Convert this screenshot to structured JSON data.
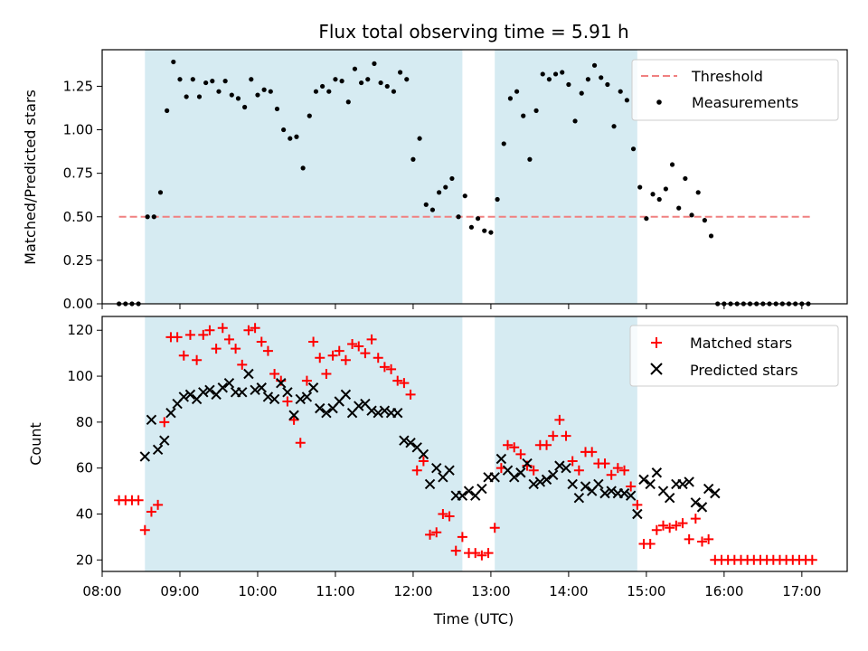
{
  "chart_data": [
    {
      "type": "scatter",
      "title": "Flux total observing time = 5.91 h",
      "xlabel": "",
      "ylabel": "Matched/Predicted stars",
      "xlim": [
        "08:00",
        "17:35"
      ],
      "ylim": [
        0,
        1.46
      ],
      "yticks": [
        "0.00",
        "0.25",
        "0.50",
        "0.75",
        "1.00",
        "1.25"
      ],
      "observing_windows": [
        [
          "08:33",
          "12:38"
        ],
        [
          "13:03",
          "14:53"
        ]
      ],
      "legend": [
        "Threshold",
        "Measurements"
      ],
      "legend_position": "top-right",
      "threshold": {
        "name": "Threshold",
        "value": 0.5,
        "x_start": "08:13",
        "x_end": "17:08",
        "color": "#f08080"
      },
      "series": [
        {
          "name": "Measurements",
          "color": "#000000",
          "x": [
            "08:13",
            "08:18",
            "08:23",
            "08:28",
            "08:35",
            "08:40",
            "08:45",
            "08:50",
            "08:55",
            "09:00",
            "09:05",
            "09:10",
            "09:15",
            "09:20",
            "09:25",
            "09:30",
            "09:35",
            "09:40",
            "09:45",
            "09:50",
            "09:55",
            "10:00",
            "10:05",
            "10:10",
            "10:15",
            "10:20",
            "10:25",
            "10:30",
            "10:35",
            "10:40",
            "10:45",
            "10:50",
            "10:55",
            "11:00",
            "11:05",
            "11:10",
            "11:15",
            "11:20",
            "11:25",
            "11:30",
            "11:35",
            "11:40",
            "11:45",
            "11:50",
            "11:55",
            "12:00",
            "12:05",
            "12:10",
            "12:15",
            "12:20",
            "12:25",
            "12:30",
            "12:35",
            "12:40",
            "12:45",
            "12:50",
            "12:55",
            "13:00",
            "13:05",
            "13:10",
            "13:15",
            "13:20",
            "13:25",
            "13:30",
            "13:35",
            "13:40",
            "13:45",
            "13:50",
            "13:55",
            "14:00",
            "14:05",
            "14:10",
            "14:15",
            "14:20",
            "14:25",
            "14:30",
            "14:35",
            "14:40",
            "14:45",
            "14:50",
            "14:55",
            "15:00",
            "15:05",
            "15:10",
            "15:15",
            "15:20",
            "15:25",
            "15:30",
            "15:35",
            "15:40",
            "15:45",
            "15:50",
            "15:55",
            "16:00",
            "16:05",
            "16:10",
            "16:15",
            "16:20",
            "16:25",
            "16:30",
            "16:35",
            "16:40",
            "16:45",
            "16:50",
            "16:55",
            "17:00",
            "17:05"
          ],
          "y": [
            0.0,
            0.0,
            0.0,
            0.0,
            0.5,
            0.5,
            0.64,
            1.11,
            1.39,
            1.29,
            1.19,
            1.29,
            1.19,
            1.27,
            1.28,
            1.22,
            1.28,
            1.2,
            1.18,
            1.13,
            1.29,
            1.2,
            1.23,
            1.22,
            1.12,
            1.0,
            0.95,
            0.96,
            0.78,
            1.08,
            1.22,
            1.25,
            1.22,
            1.29,
            1.28,
            1.16,
            1.35,
            1.27,
            1.29,
            1.38,
            1.27,
            1.25,
            1.22,
            1.33,
            1.29,
            0.83,
            0.95,
            0.57,
            0.54,
            0.64,
            0.67,
            0.72,
            0.5,
            0.62,
            0.44,
            0.49,
            0.42,
            0.41,
            0.6,
            0.92,
            1.18,
            1.22,
            1.08,
            0.83,
            1.11,
            1.32,
            1.29,
            1.32,
            1.33,
            1.26,
            1.05,
            1.21,
            1.29,
            1.37,
            1.3,
            1.26,
            1.02,
            1.22,
            1.17,
            0.89,
            0.67,
            0.49,
            0.63,
            0.6,
            0.66,
            0.8,
            0.55,
            0.72,
            0.51,
            0.64,
            0.48,
            0.39,
            0.0,
            0.0,
            0.0,
            0.0,
            0.0,
            0.0,
            0.0,
            0.0,
            0.0,
            0.0,
            0.0,
            0.0,
            0.0,
            0.0,
            0.0
          ]
        }
      ]
    },
    {
      "type": "scatter",
      "title": "",
      "xlabel": "Time (UTC)",
      "ylabel": "Count",
      "xlim": [
        "08:00",
        "17:35"
      ],
      "ylim": [
        15,
        126
      ],
      "yticks": [
        "20",
        "40",
        "60",
        "80",
        "100",
        "120"
      ],
      "xticks": [
        "08:00",
        "09:00",
        "10:00",
        "11:00",
        "12:00",
        "13:00",
        "14:00",
        "15:00",
        "16:00",
        "17:00"
      ],
      "observing_windows": [
        [
          "08:33",
          "12:38"
        ],
        [
          "13:03",
          "14:53"
        ]
      ],
      "legend": [
        "Matched stars",
        "Predicted stars"
      ],
      "legend_position": "top-right",
      "series": [
        {
          "name": "Matched stars",
          "marker": "+",
          "color": "#ff0000",
          "x": [
            "08:13",
            "08:18",
            "08:23",
            "08:28",
            "08:33",
            "08:38",
            "08:43",
            "08:48",
            "08:53",
            "08:58",
            "09:03",
            "09:08",
            "09:13",
            "09:18",
            "09:23",
            "09:28",
            "09:33",
            "09:38",
            "09:43",
            "09:48",
            "09:53",
            "09:58",
            "10:03",
            "10:08",
            "10:13",
            "10:18",
            "10:23",
            "10:28",
            "10:33",
            "10:38",
            "10:43",
            "10:48",
            "10:53",
            "10:58",
            "11:03",
            "11:08",
            "11:13",
            "11:18",
            "11:23",
            "11:28",
            "11:33",
            "11:38",
            "11:43",
            "11:48",
            "11:53",
            "11:58",
            "12:03",
            "12:08",
            "12:13",
            "12:18",
            "12:23",
            "12:28",
            "12:33",
            "12:38",
            "12:43",
            "12:48",
            "12:53",
            "12:58",
            "13:03",
            "13:08",
            "13:13",
            "13:18",
            "13:23",
            "13:28",
            "13:33",
            "13:38",
            "13:43",
            "13:48",
            "13:53",
            "13:58",
            "14:03",
            "14:08",
            "14:13",
            "14:18",
            "14:23",
            "14:28",
            "14:33",
            "14:38",
            "14:43",
            "14:48",
            "14:53",
            "14:58",
            "15:03",
            "15:08",
            "15:13",
            "15:18",
            "15:23",
            "15:28",
            "15:33",
            "15:38",
            "15:43",
            "15:48",
            "15:53",
            "15:58",
            "16:03",
            "16:08",
            "16:13",
            "16:18",
            "16:23",
            "16:28",
            "16:33",
            "16:38",
            "16:43",
            "16:48",
            "16:53",
            "16:58",
            "17:03",
            "17:08"
          ],
          "y": [
            46,
            46,
            46,
            46,
            33,
            41,
            44,
            80,
            117,
            117,
            109,
            118,
            107,
            118,
            120,
            112,
            121,
            116,
            112,
            105,
            120,
            121,
            115,
            111,
            101,
            98,
            89,
            81,
            71,
            98,
            115,
            108,
            101,
            109,
            111,
            107,
            114,
            113,
            110,
            116,
            108,
            104,
            103,
            98,
            97,
            92,
            59,
            63,
            31,
            32,
            40,
            39,
            24,
            30,
            23,
            23,
            22,
            23,
            34,
            60,
            70,
            69,
            66,
            61,
            59,
            70,
            70,
            74,
            81,
            74,
            63,
            59,
            67,
            67,
            62,
            62,
            57,
            60,
            59,
            52,
            44,
            27,
            27,
            33,
            35,
            34,
            35,
            36,
            29,
            38,
            28,
            29,
            20,
            20,
            20,
            20,
            20,
            20,
            20,
            20,
            20,
            20,
            20,
            20,
            20,
            20,
            20,
            20
          ]
        },
        {
          "name": "Predicted stars",
          "marker": "x",
          "color": "#000000",
          "x": [
            "08:33",
            "08:38",
            "08:43",
            "08:48",
            "08:53",
            "08:58",
            "09:03",
            "09:08",
            "09:13",
            "09:18",
            "09:23",
            "09:28",
            "09:33",
            "09:38",
            "09:43",
            "09:48",
            "09:53",
            "09:58",
            "10:03",
            "10:08",
            "10:13",
            "10:18",
            "10:23",
            "10:28",
            "10:33",
            "10:38",
            "10:43",
            "10:48",
            "10:53",
            "10:58",
            "11:03",
            "11:08",
            "11:13",
            "11:18",
            "11:23",
            "11:28",
            "11:33",
            "11:38",
            "11:43",
            "11:48",
            "11:53",
            "11:58",
            "12:03",
            "12:08",
            "12:13",
            "12:18",
            "12:23",
            "12:28",
            "12:33",
            "12:38",
            "12:43",
            "12:48",
            "12:53",
            "12:58",
            "13:03",
            "13:08",
            "13:13",
            "13:18",
            "13:23",
            "13:28",
            "13:33",
            "13:38",
            "13:43",
            "13:48",
            "13:53",
            "13:58",
            "14:03",
            "14:08",
            "14:13",
            "14:18",
            "14:23",
            "14:28",
            "14:33",
            "14:38",
            "14:43",
            "14:48",
            "14:53",
            "14:58",
            "15:03",
            "15:08",
            "15:13",
            "15:18",
            "15:23",
            "15:28",
            "15:33",
            "15:38",
            "15:43",
            "15:48",
            "15:53"
          ],
          "y": [
            65,
            81,
            68,
            72,
            84,
            88,
            91,
            92,
            90,
            93,
            94,
            92,
            95,
            97,
            93,
            93,
            101,
            94,
            95,
            91,
            90,
            97,
            93,
            83,
            90,
            91,
            95,
            86,
            84,
            86,
            89,
            92,
            84,
            87,
            88,
            85,
            84,
            85,
            84,
            84,
            72,
            71,
            69,
            66,
            53,
            60,
            56,
            59,
            48,
            48,
            50,
            48,
            51,
            56,
            56,
            64,
            59,
            56,
            58,
            62,
            53,
            54,
            55,
            57,
            61,
            60,
            53,
            47,
            52,
            50,
            53,
            49,
            50,
            49,
            49,
            48,
            40,
            55,
            53,
            58,
            50,
            47,
            53,
            53,
            54,
            45,
            43,
            51,
            49
          ]
        }
      ]
    }
  ]
}
